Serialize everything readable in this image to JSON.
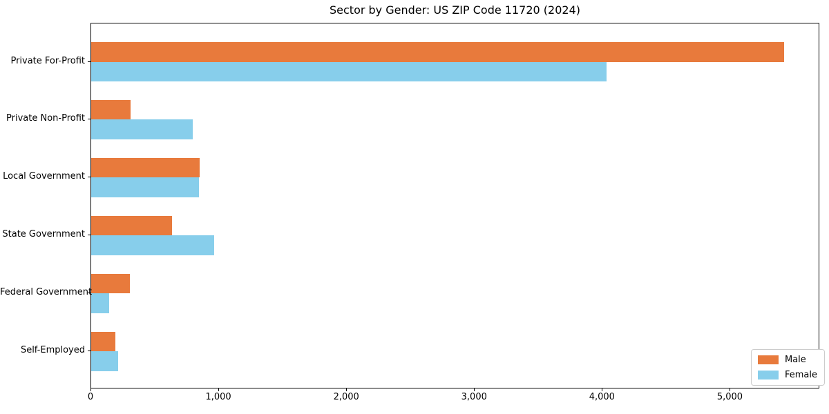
{
  "chart_data": {
    "type": "bar",
    "orientation": "horizontal",
    "title": "Sector by Gender: US ZIP Code 11720 (2024)",
    "categories": [
      "Private For-Profit",
      "Private Non-Profit",
      "Local Government",
      "State Government",
      "Federal Government",
      "Self-Employed"
    ],
    "series": [
      {
        "name": "Male",
        "color": "#e87a3c",
        "values": [
          5420,
          310,
          850,
          630,
          300,
          190
        ]
      },
      {
        "name": "Female",
        "color": "#87ceeb",
        "values": [
          4030,
          795,
          845,
          960,
          140,
          210
        ]
      }
    ],
    "xlabel": "",
    "ylabel": "",
    "xlim": [
      0,
      5700
    ],
    "x_ticks": [
      0,
      1000,
      2000,
      3000,
      4000,
      5000
    ],
    "x_tick_labels": [
      "0",
      "1,000",
      "2,000",
      "3,000",
      "4,000",
      "5,000"
    ],
    "grid": false,
    "legend": {
      "position": "lower right",
      "entries": [
        "Male",
        "Female"
      ]
    }
  }
}
